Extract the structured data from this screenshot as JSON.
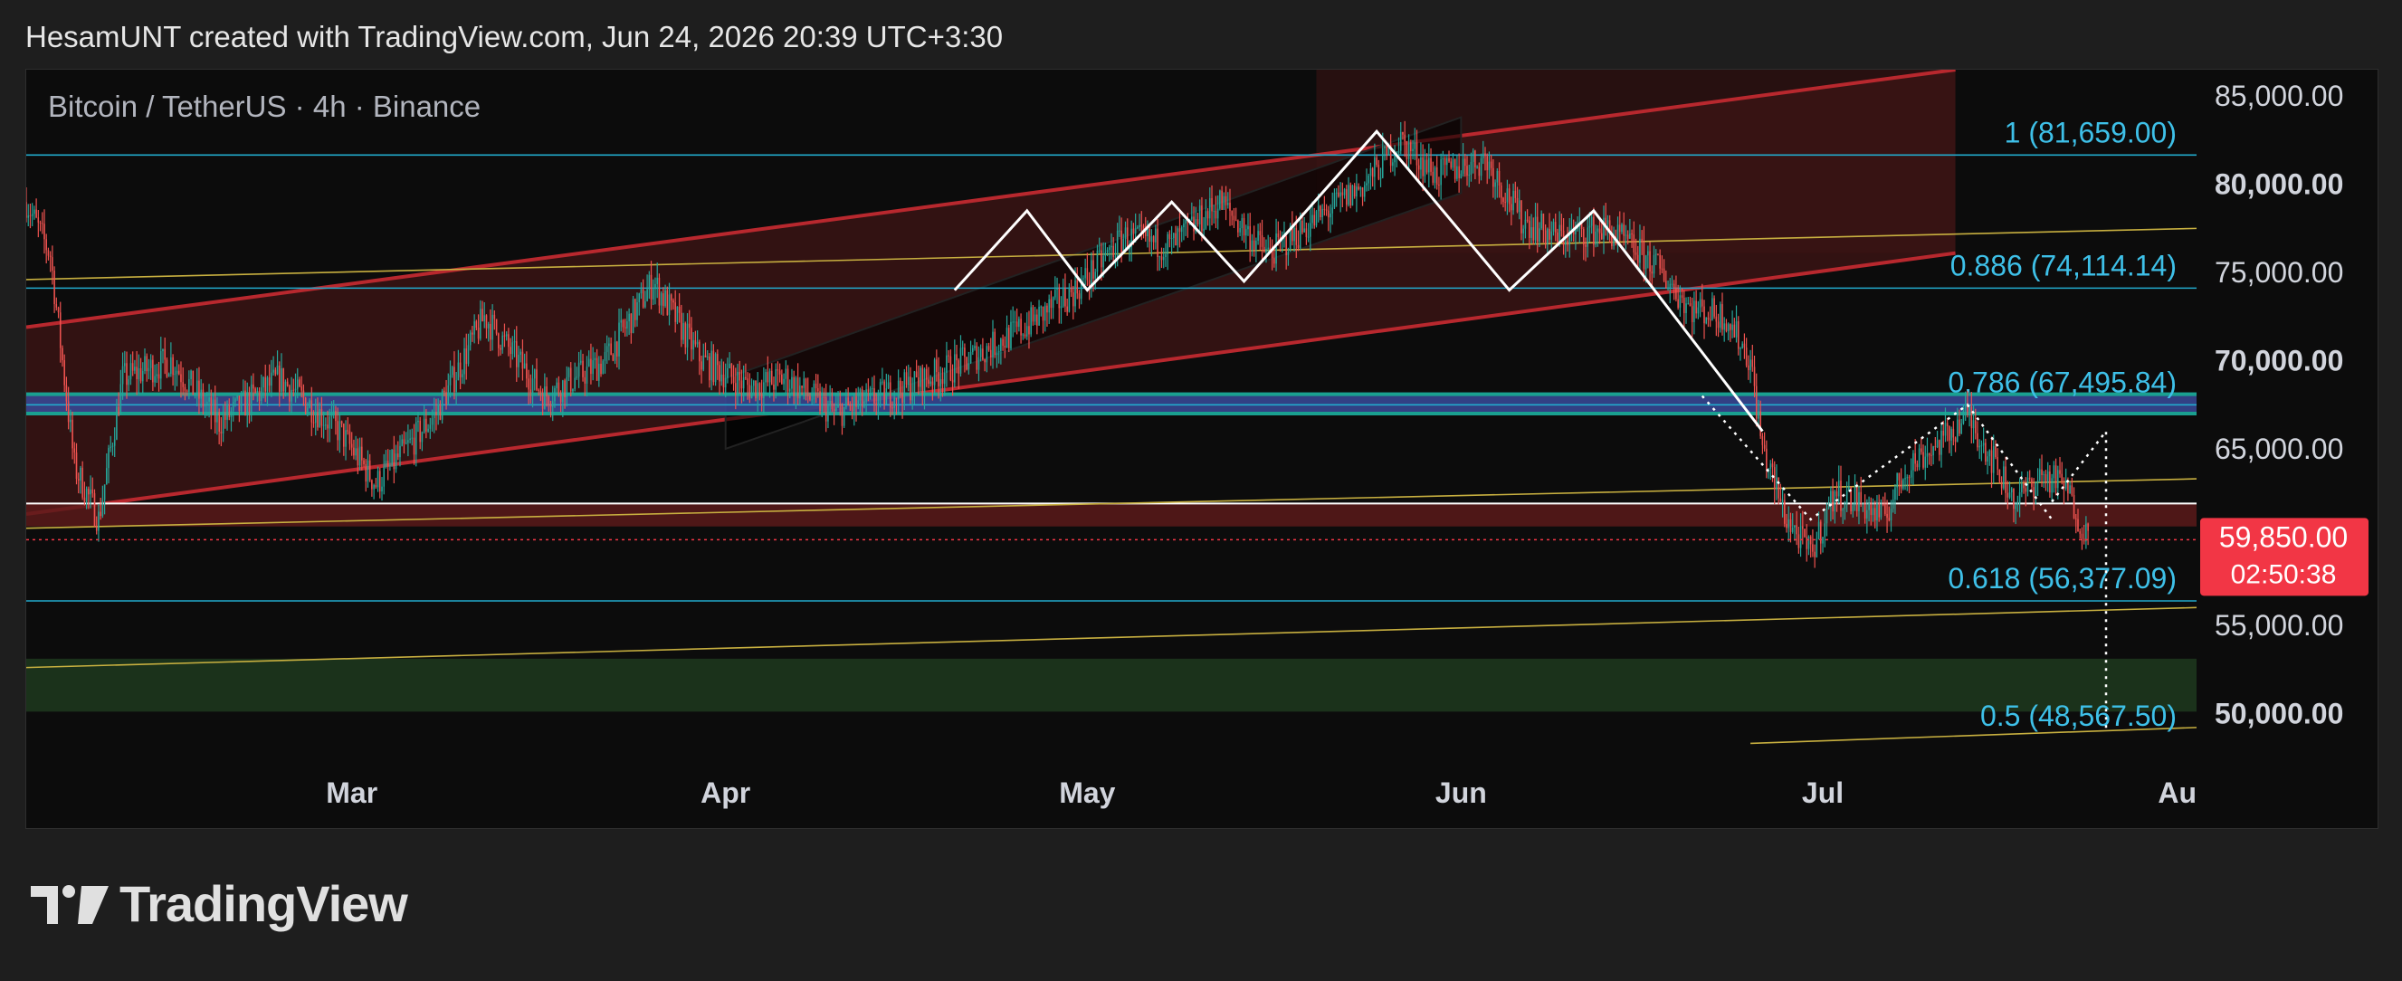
{
  "header": {
    "caption": "HesamUNT created with TradingView.com, Jun 24, 2026 20:39 UTC+3:30"
  },
  "chart": {
    "symbol_title": "Bitcoin / TetherUS · 4h · Binance"
  },
  "chart_data": {
    "type": "candlestick",
    "title": "Bitcoin / TetherUS · 4h · Binance",
    "ylim": [
      47500,
      86500
    ],
    "y_ticks": [
      {
        "value": 85000,
        "label": "85,000.00",
        "bold": false
      },
      {
        "value": 80000,
        "label": "80,000.00",
        "bold": true
      },
      {
        "value": 75000,
        "label": "75,000.00",
        "bold": false
      },
      {
        "value": 70000,
        "label": "70,000.00",
        "bold": true
      },
      {
        "value": 65000,
        "label": "65,000.00",
        "bold": false
      },
      {
        "value": 55000,
        "label": "55,000.00",
        "bold": false
      },
      {
        "value": 50000,
        "label": "50,000.00",
        "bold": true
      }
    ],
    "x_ticks": [
      {
        "date": "2026-03-01",
        "label": "Mar"
      },
      {
        "date": "2026-04-01",
        "label": "Apr"
      },
      {
        "date": "2026-05-01",
        "label": "May"
      },
      {
        "date": "2026-06-01",
        "label": "Jun"
      },
      {
        "date": "2026-07-01",
        "label": "Jul"
      },
      {
        "date": "2026-08-01",
        "label": "Au"
      }
    ],
    "x_range": [
      "2026-02-02",
      "2026-08-01"
    ],
    "current_price": {
      "value": 59850,
      "label": "59,850.00",
      "countdown": "02:50:38",
      "color": "#f23645"
    },
    "fib_levels": [
      {
        "value": 81659.0,
        "label": "1 (81,659.00)"
      },
      {
        "value": 74114.14,
        "label": "0.886 (74,114.14)"
      },
      {
        "value": 67495.84,
        "label": "0.786 (67,495.84)"
      },
      {
        "value": 56377.09,
        "label": "0.618 (56,377.09)"
      },
      {
        "value": 48567.5,
        "label": "0.5 (48,567.50)"
      }
    ],
    "zones": [
      {
        "name": "blue-support-band",
        "from": 66900,
        "to": 68200,
        "color": "#3a4a9a"
      },
      {
        "name": "red-support-band",
        "from": 60600,
        "to": 61900,
        "color": "#5a1a1a"
      },
      {
        "name": "green-target-zone",
        "from": 50100,
        "to": 53100,
        "color": "#1f3a1f"
      }
    ],
    "price_path": [
      {
        "date": "2026-02-02",
        "price": 79000
      },
      {
        "date": "2026-02-04",
        "price": 76000
      },
      {
        "date": "2026-02-06",
        "price": 64000
      },
      {
        "date": "2026-02-08",
        "price": 61000
      },
      {
        "date": "2026-02-10",
        "price": 69000
      },
      {
        "date": "2026-02-14",
        "price": 70000
      },
      {
        "date": "2026-02-18",
        "price": 66500
      },
      {
        "date": "2026-02-23",
        "price": 69000
      },
      {
        "date": "2026-02-28",
        "price": 66000
      },
      {
        "date": "2026-03-03",
        "price": 63000
      },
      {
        "date": "2026-03-08",
        "price": 67000
      },
      {
        "date": "2026-03-12",
        "price": 72500
      },
      {
        "date": "2026-03-17",
        "price": 68000
      },
      {
        "date": "2026-03-22",
        "price": 70000
      },
      {
        "date": "2026-03-26",
        "price": 74500
      },
      {
        "date": "2026-03-30",
        "price": 70000
      },
      {
        "date": "2026-04-03",
        "price": 68500
      },
      {
        "date": "2026-04-06",
        "price": 69000
      },
      {
        "date": "2026-04-10",
        "price": 67000
      },
      {
        "date": "2026-04-16",
        "price": 68500
      },
      {
        "date": "2026-04-21",
        "price": 70000
      },
      {
        "date": "2026-04-26",
        "price": 72000
      },
      {
        "date": "2026-04-30",
        "price": 74000
      },
      {
        "date": "2026-05-04",
        "price": 77000
      },
      {
        "date": "2026-05-08",
        "price": 76500
      },
      {
        "date": "2026-05-12",
        "price": 79000
      },
      {
        "date": "2026-05-16",
        "price": 76000
      },
      {
        "date": "2026-05-20",
        "price": 78000
      },
      {
        "date": "2026-05-24",
        "price": 80000
      },
      {
        "date": "2026-05-27",
        "price": 82500
      },
      {
        "date": "2026-05-30",
        "price": 80500
      },
      {
        "date": "2026-06-03",
        "price": 81500
      },
      {
        "date": "2026-06-06",
        "price": 78000
      },
      {
        "date": "2026-06-09",
        "price": 77000
      },
      {
        "date": "2026-06-13",
        "price": 77500
      },
      {
        "date": "2026-06-17",
        "price": 75500
      },
      {
        "date": "2026-06-20",
        "price": 73000
      },
      {
        "date": "2026-06-23",
        "price": 72500
      },
      {
        "date": "2026-06-25",
        "price": 70000
      },
      {
        "date": "2026-06-26",
        "price": 65000
      },
      {
        "date": "2026-06-28",
        "price": 61000
      },
      {
        "date": "2026-06-30",
        "price": 59000
      },
      {
        "date": "2026-07-02",
        "price": 62500
      },
      {
        "date": "2026-07-04",
        "price": 62000
      },
      {
        "date": "2026-07-06",
        "price": 61000
      },
      {
        "date": "2026-07-08",
        "price": 64000
      },
      {
        "date": "2026-07-11",
        "price": 65500
      },
      {
        "date": "2026-07-13",
        "price": 67000
      },
      {
        "date": "2026-07-15",
        "price": 64500
      },
      {
        "date": "2026-07-17",
        "price": 62000
      },
      {
        "date": "2026-07-19",
        "price": 63500
      },
      {
        "date": "2026-07-21",
        "price": 63000
      },
      {
        "date": "2026-07-22",
        "price": 61500
      },
      {
        "date": "2026-07-23",
        "price": 59850
      }
    ],
    "colors": {
      "up": "#26a69a",
      "down": "#ef5350",
      "fib_line": "#22aacc",
      "fib_label": "#3ec0e8",
      "channel": "#b8282e",
      "channel_fill": "#3a1414",
      "trendline": "#c8b040",
      "zigzag": "#ffffff",
      "background": "#0c0c0c",
      "axis_text": "#d1d4dc",
      "current_label_bg": "#f23645"
    }
  },
  "branding": {
    "name": "TradingView"
  }
}
